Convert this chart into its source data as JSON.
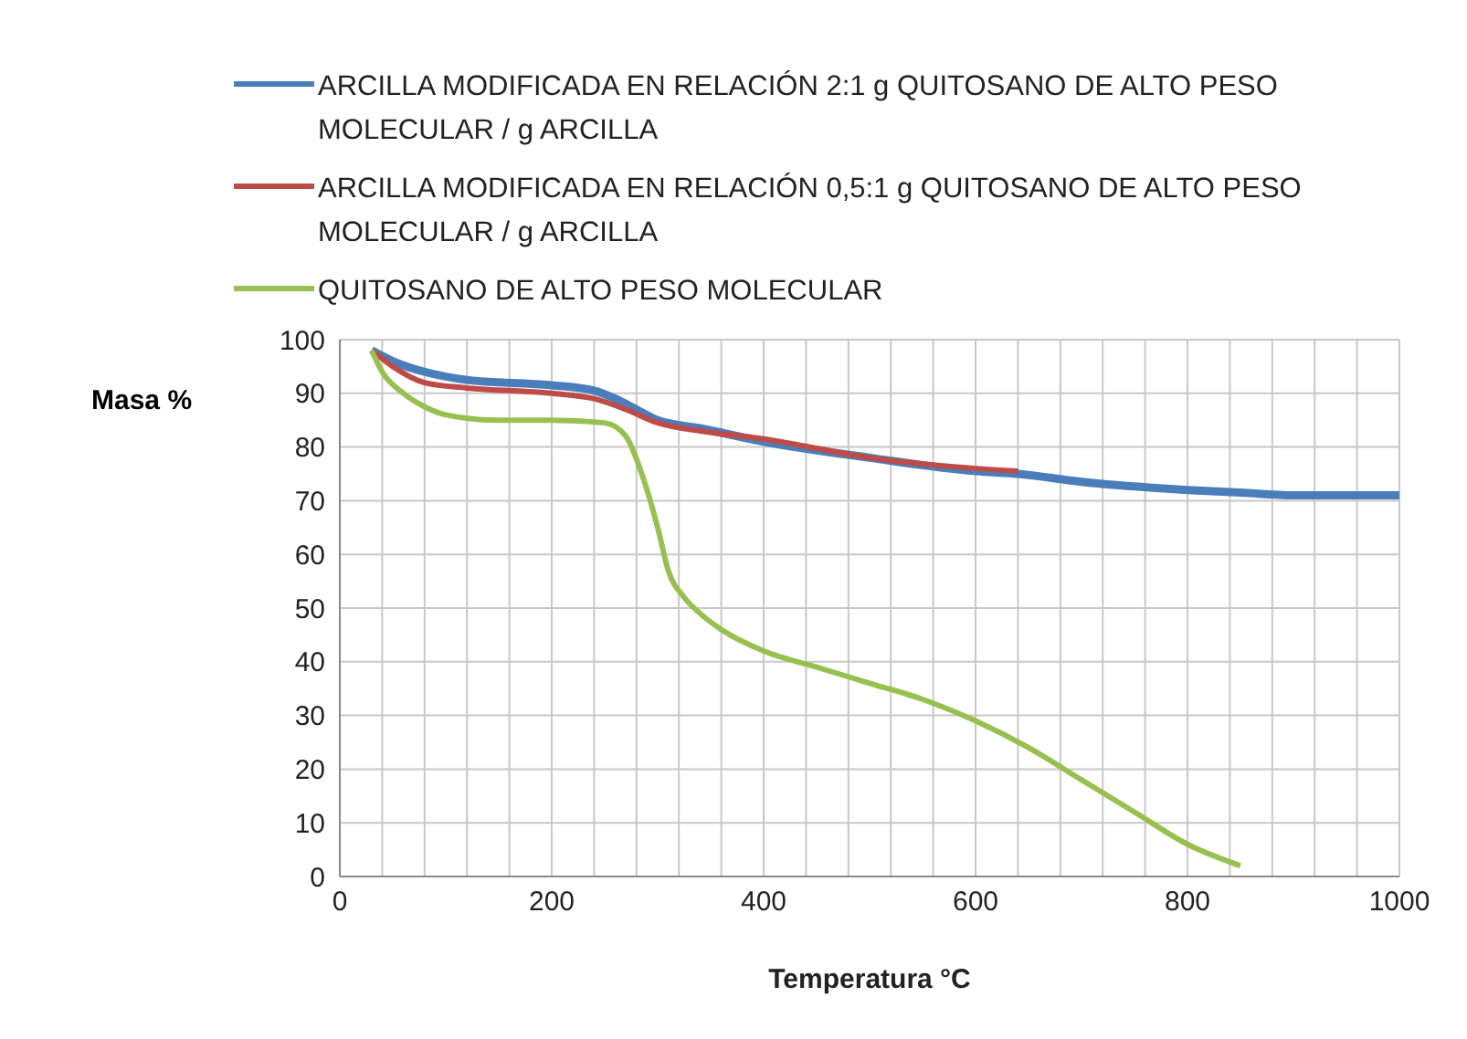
{
  "chart_data": {
    "type": "line",
    "xlabel": "Temperatura °C",
    "ylabel": "Masa %",
    "xlim": [
      0,
      1000
    ],
    "ylim": [
      0,
      100
    ],
    "xticks": [
      0,
      {
        "value": 40,
        "label": null
      },
      {
        "value": 80,
        "label": null
      },
      {
        "value": 120,
        "label": null
      },
      {
        "value": 160,
        "label": null
      },
      200,
      {
        "value": 240,
        "label": null
      },
      {
        "value": 280,
        "label": null
      },
      {
        "value": 320,
        "label": null
      },
      {
        "value": 360,
        "label": null
      },
      400,
      {
        "value": 440,
        "label": null
      },
      {
        "value": 480,
        "label": null
      },
      {
        "value": 520,
        "label": null
      },
      {
        "value": 560,
        "label": null
      },
      600,
      {
        "value": 640,
        "label": null
      },
      {
        "value": 680,
        "label": null
      },
      {
        "value": 720,
        "label": null
      },
      {
        "value": 760,
        "label": null
      },
      800,
      {
        "value": 840,
        "label": null
      },
      {
        "value": 880,
        "label": null
      },
      {
        "value": 920,
        "label": null
      },
      {
        "value": 960,
        "label": null
      },
      1000
    ],
    "yticks": [
      0,
      10,
      20,
      30,
      40,
      50,
      60,
      70,
      80,
      90,
      100
    ],
    "grid": true,
    "legend": "top",
    "marker": "none",
    "line_style": "solid",
    "series": [
      {
        "name": "ARCILLA MODIFICADA EN RELACIÓN 2:1 g QUITOSANO DE ALTO PESO MOLECULAR / g ARCILLA",
        "color": "#4a7ebb",
        "x": [
          30,
          50,
          80,
          120,
          200,
          240,
          260,
          280,
          300,
          340,
          400,
          500,
          600,
          640,
          700,
          800,
          850,
          900,
          1000
        ],
        "values": [
          98,
          96,
          94,
          92.5,
          91.5,
          90.5,
          89,
          87,
          85,
          83.5,
          81,
          78,
          75.5,
          75,
          73.5,
          72,
          71.5,
          71,
          71
        ]
      },
      {
        "name": "ARCILLA MODIFICADA EN RELACIÓN 0,5:1 g QUITOSANO DE ALTO PESO MOLECULAR / g ARCILLA",
        "color": "#be4b48",
        "x": [
          30,
          50,
          80,
          120,
          200,
          240,
          270,
          300,
          340,
          400,
          500,
          600,
          640
        ],
        "values": [
          98,
          95,
          92,
          91,
          90,
          89,
          87,
          84.5,
          83,
          81.5,
          78,
          76,
          75.5
        ]
      },
      {
        "name": "QUITOSANO DE ALTO PESO MOLECULAR",
        "color": "#98c050",
        "x": [
          30,
          40,
          60,
          80,
          100,
          150,
          200,
          250,
          270,
          285,
          300,
          310,
          325,
          340,
          360,
          400,
          450,
          500,
          550,
          600,
          650,
          700,
          750,
          800,
          850
        ],
        "values": [
          98,
          94,
          90,
          87.5,
          86,
          85,
          85,
          84.5,
          82,
          75,
          65,
          57,
          52,
          49,
          46,
          42,
          39,
          36,
          33,
          29,
          24,
          18,
          12,
          6,
          2
        ]
      }
    ]
  }
}
